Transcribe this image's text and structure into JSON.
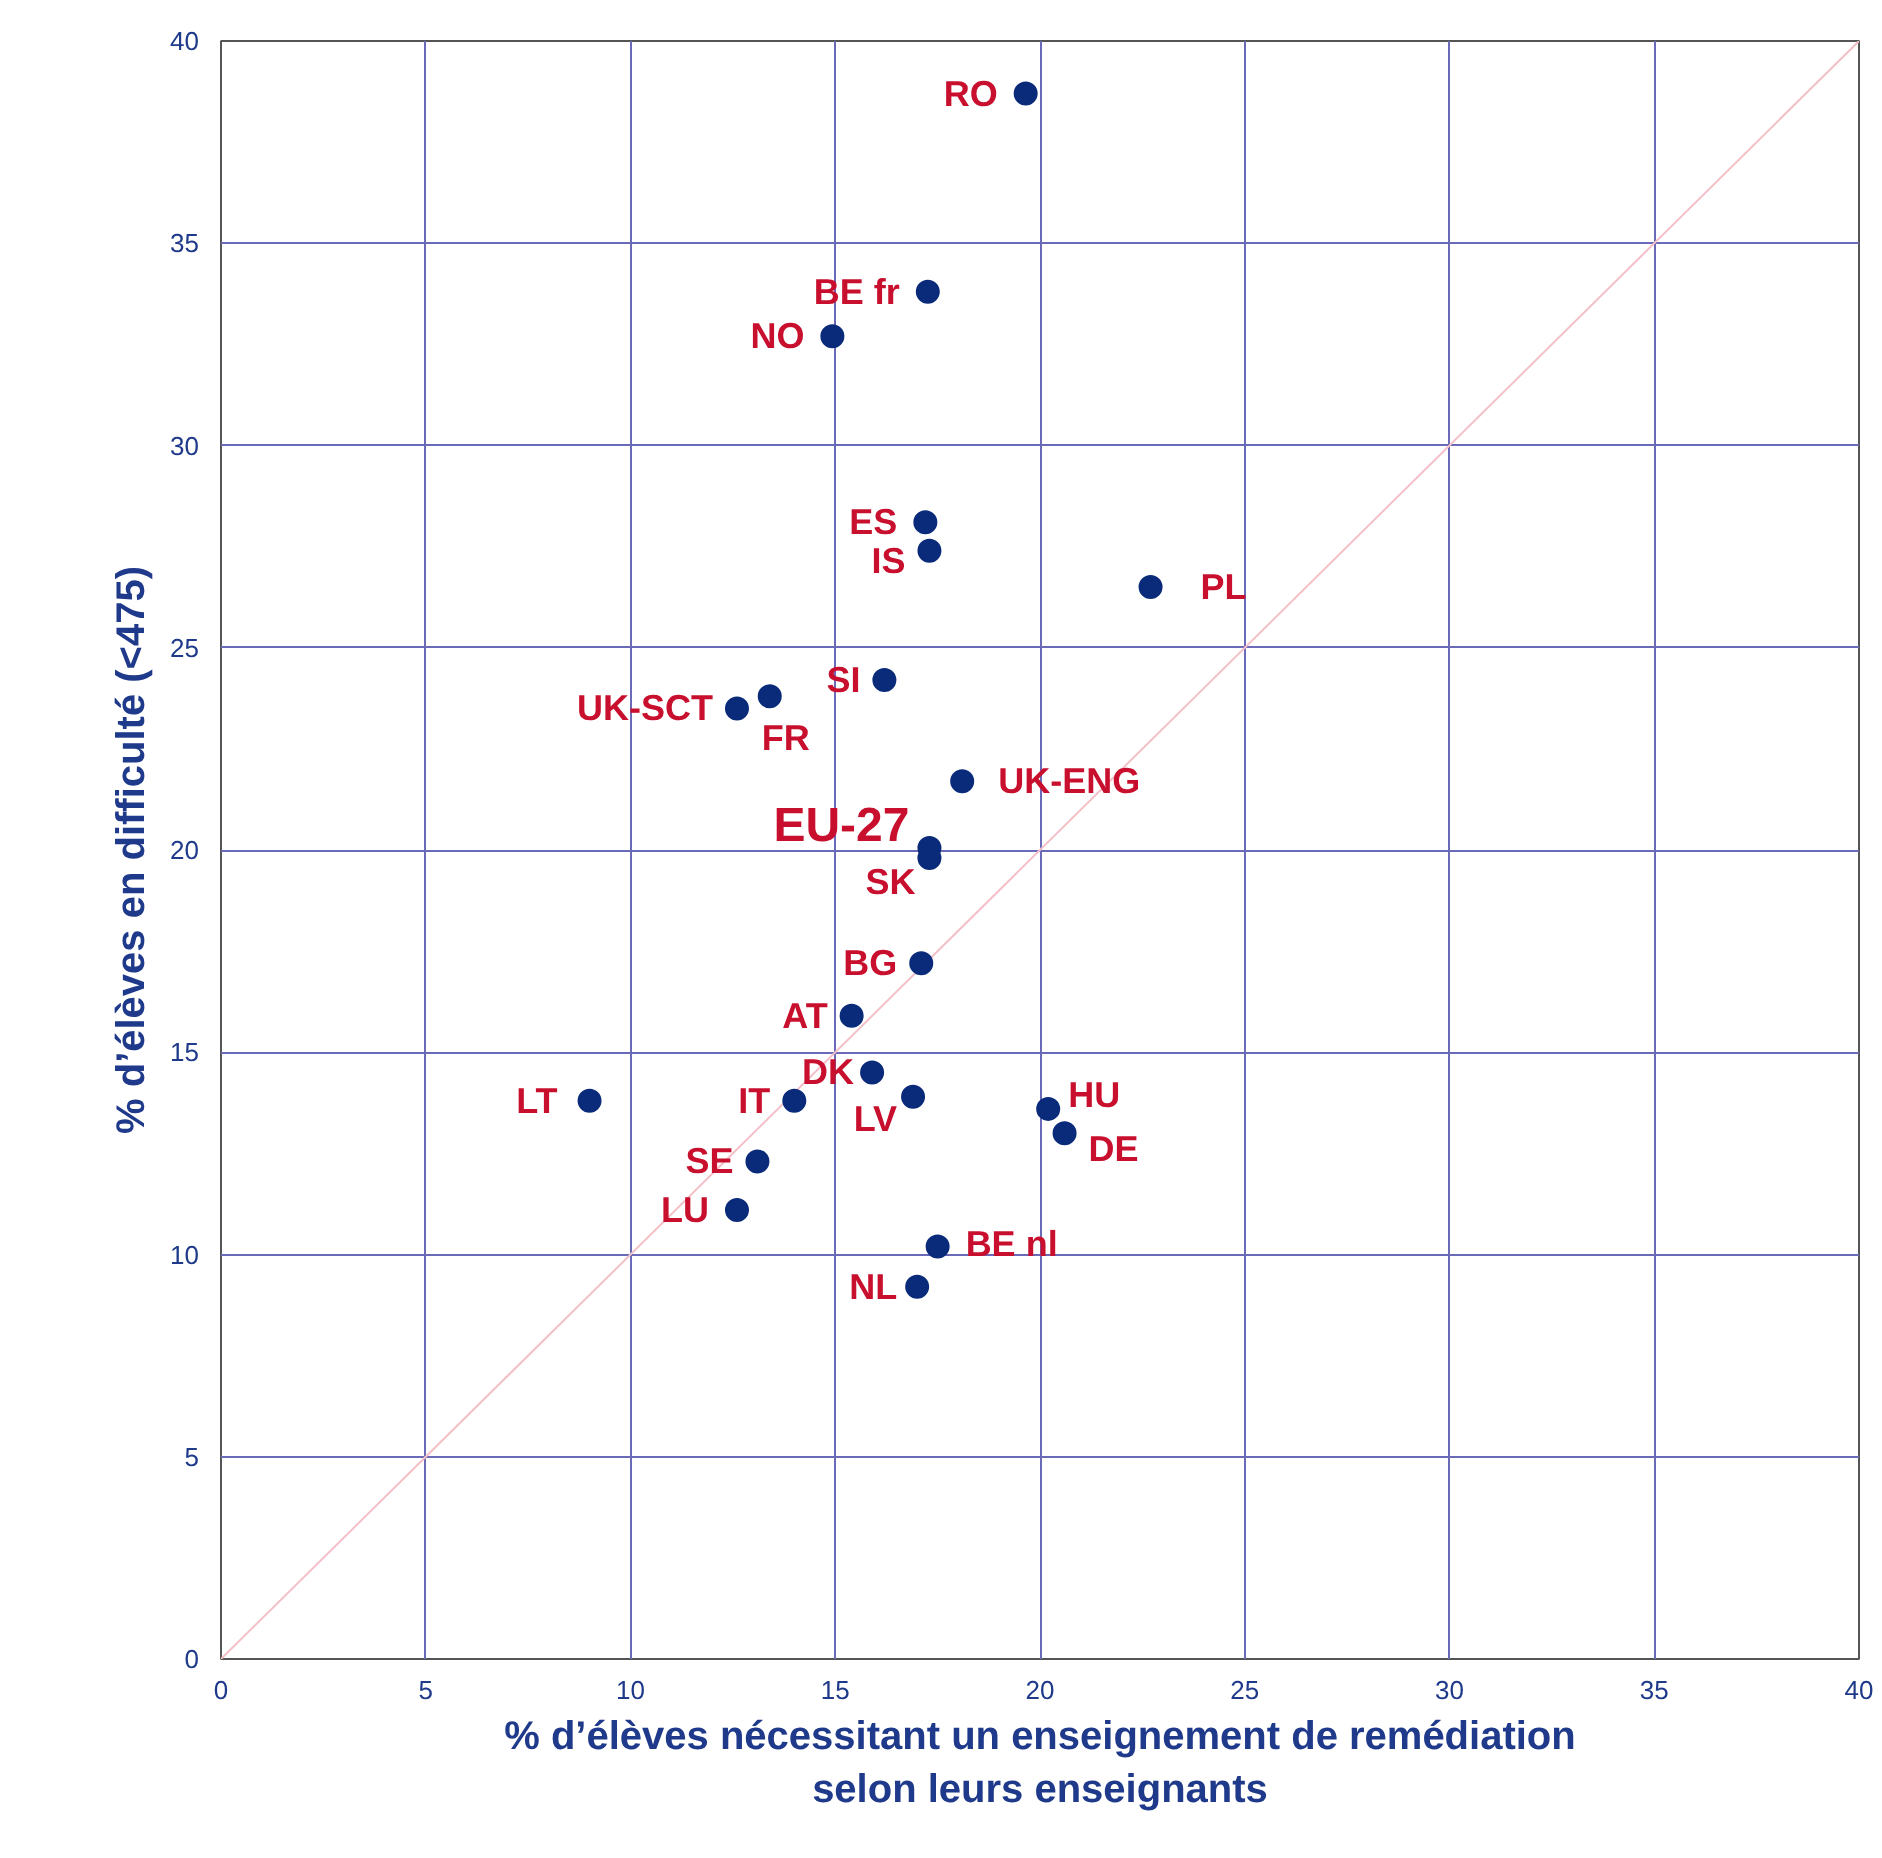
{
  "chart_data": {
    "type": "scatter",
    "xlabel": "% d’élèves nécessitant un enseignement de remédiation\nselon leurs enseignants",
    "ylabel": "% d’élèves en difficulté (<475)",
    "xlim": [
      0,
      40
    ],
    "ylim": [
      0,
      40
    ],
    "xticks": [
      0,
      5,
      10,
      15,
      20,
      25,
      30,
      35,
      40
    ],
    "yticks": [
      0,
      5,
      10,
      15,
      20,
      25,
      30,
      35,
      40
    ],
    "grid": true,
    "series": [
      {
        "type": "line",
        "color": "#f4c0c8",
        "x": [
          0,
          40
        ],
        "values": [
          0,
          40
        ]
      },
      {
        "marker": "circle",
        "color": "#0a2a7a",
        "x": [
          19.65,
          17.26,
          14.93,
          17.2,
          17.3,
          22.7,
          16.2,
          12.6,
          13.4,
          18.1,
          17.3,
          17.3,
          17.1,
          15.4,
          15.9,
          9.0,
          14.0,
          16.9,
          20.2,
          20.6,
          13.1,
          12.6,
          17.5,
          17.0
        ],
        "values": [
          38.7,
          33.8,
          32.7,
          28.1,
          27.4,
          26.5,
          24.2,
          23.5,
          23.8,
          21.7,
          20.05,
          19.8,
          17.2,
          15.9,
          14.5,
          13.8,
          13.8,
          13.9,
          13.6,
          13.0,
          12.3,
          11.1,
          10.2,
          9.2
        ]
      }
    ],
    "annotations": [
      {
        "text": "RO",
        "x": 19.65,
        "y": 38.7
      },
      {
        "text": "BE fr",
        "x": 17.26,
        "y": 33.8
      },
      {
        "text": "NO",
        "x": 14.93,
        "y": 32.7
      },
      {
        "text": "ES",
        "x": 17.2,
        "y": 28.1
      },
      {
        "text": "IS",
        "x": 17.3,
        "y": 27.4
      },
      {
        "text": "PL",
        "x": 22.7,
        "y": 26.5
      },
      {
        "text": "SI",
        "x": 16.2,
        "y": 24.2
      },
      {
        "text": "UK-SCT",
        "x": 12.6,
        "y": 23.5
      },
      {
        "text": "FR",
        "x": 13.4,
        "y": 23.8
      },
      {
        "text": "UK-ENG",
        "x": 18.1,
        "y": 21.7
      },
      {
        "text": "EU-27",
        "x": 17.3,
        "y": 20.05
      },
      {
        "text": "SK",
        "x": 17.3,
        "y": 19.8
      },
      {
        "text": "BG",
        "x": 17.1,
        "y": 17.2
      },
      {
        "text": "AT",
        "x": 15.4,
        "y": 15.9
      },
      {
        "text": "DK",
        "x": 15.9,
        "y": 14.5
      },
      {
        "text": "LT",
        "x": 9.0,
        "y": 13.8
      },
      {
        "text": "IT",
        "x": 14.0,
        "y": 13.8
      },
      {
        "text": "LV",
        "x": 16.9,
        "y": 13.9
      },
      {
        "text": "HU",
        "x": 20.2,
        "y": 13.6
      },
      {
        "text": "DE",
        "x": 20.6,
        "y": 13.0
      },
      {
        "text": "SE",
        "x": 13.1,
        "y": 12.3
      },
      {
        "text": "LU",
        "x": 12.6,
        "y": 11.1
      },
      {
        "text": "BE nl",
        "x": 17.5,
        "y": 10.2
      },
      {
        "text": "NL",
        "x": 17.0,
        "y": 9.2
      }
    ]
  }
}
